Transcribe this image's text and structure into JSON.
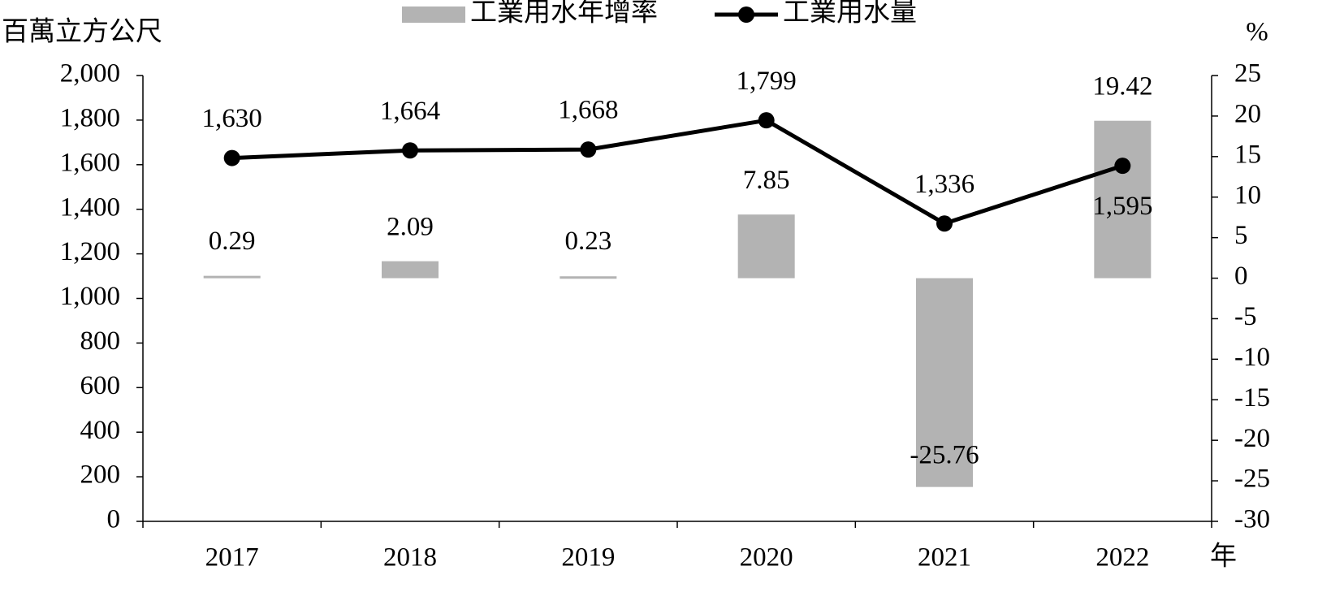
{
  "chart_data": {
    "type": "combo",
    "y_axis_label": "百萬立方公尺",
    "y2_axis_label": "%",
    "x_axis_label": "年",
    "categories": [
      "2017",
      "2018",
      "2019",
      "2020",
      "2021",
      "2022"
    ],
    "series": [
      {
        "name": "工業用水年增率",
        "type": "bar",
        "axis": "y2",
        "color": "#b3b3b3",
        "values": [
          0.29,
          2.09,
          0.23,
          7.85,
          -25.76,
          19.42
        ]
      },
      {
        "name": "工業用水量",
        "type": "line",
        "color": "#000000",
        "values": [
          1630,
          1664,
          1668,
          1799,
          1336,
          1595
        ],
        "value_labels": [
          "1,630",
          "1,664",
          "1,668",
          "1,799",
          "1,336",
          "1,595"
        ]
      }
    ],
    "ylim": [
      0,
      2000
    ],
    "yticks": [
      0,
      200,
      400,
      600,
      800,
      {
        "value": 1000,
        "label": "1,000"
      },
      {
        "value": 1200,
        "label": "1,200"
      },
      {
        "value": 1400,
        "label": "1,400"
      },
      {
        "value": 1600,
        "label": "1,600"
      },
      {
        "value": 1800,
        "label": "1,800"
      },
      {
        "value": 2000,
        "label": "2,000"
      }
    ],
    "y2lim": [
      -30,
      25
    ],
    "y2ticks": [
      -30,
      -25,
      -20,
      -15,
      -10,
      -5,
      0,
      5,
      10,
      15,
      20,
      25
    ],
    "legend": "top"
  }
}
